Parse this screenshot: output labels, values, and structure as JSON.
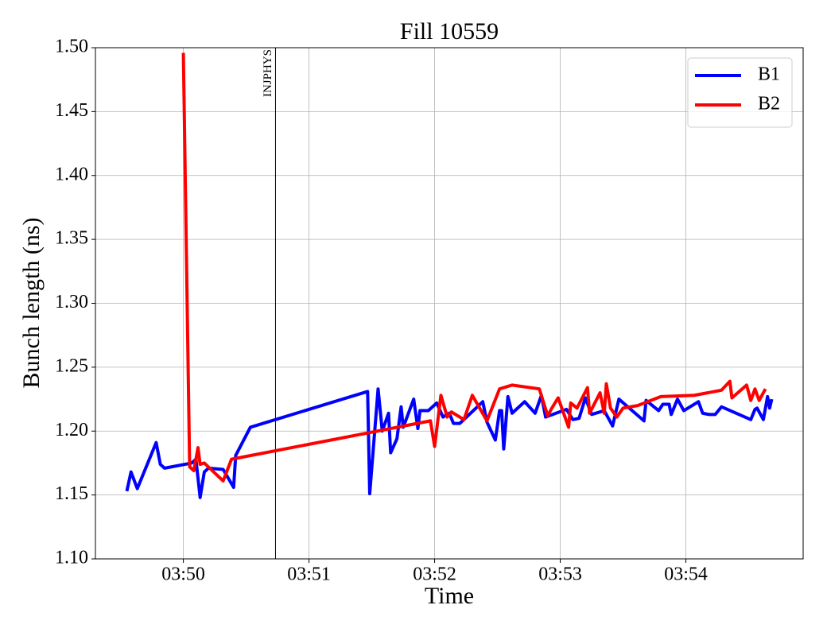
{
  "chart_data": {
    "type": "line",
    "title": "Fill 10559",
    "x_label": "Time",
    "y_label": "Bunch length (ns)",
    "xlim": [
      "03:49:18",
      "03:54:56"
    ],
    "xticks": [
      {
        "value": "03:50:00",
        "label": "03:50"
      },
      {
        "value": "03:51:00",
        "label": "03:51"
      },
      {
        "value": "03:52:00",
        "label": "03:52"
      },
      {
        "value": "03:53:00",
        "label": "03:53"
      },
      {
        "value": "03:54:00",
        "label": "03:54"
      }
    ],
    "ylim": [
      1.1,
      1.5
    ],
    "yticks": [
      {
        "value": 1.1,
        "label": "1.10"
      },
      1.15,
      {
        "value": 1.2,
        "label": "1.20"
      },
      1.25,
      {
        "value": 1.3,
        "label": "1.30"
      },
      1.35,
      {
        "value": 1.4,
        "label": "1.40"
      },
      1.45,
      {
        "value": 1.5,
        "label": "1.50"
      }
    ],
    "grid": true,
    "legend_position": "upper right",
    "annotations": [
      {
        "x": "03:50:44",
        "text": "INJPHYS"
      }
    ],
    "series": [
      {
        "name": "B1",
        "color": "#0000ff",
        "x": [
          "03:49:33",
          "03:49:35",
          "03:49:38",
          "03:49:47",
          "03:49:49",
          "03:49:51",
          "03:50:04",
          "03:50:06",
          "03:50:08",
          "03:50:10",
          "03:50:12",
          "03:50:19",
          "03:50:24",
          "03:50:25",
          "03:50:32",
          "03:51:28",
          "03:51:29",
          "03:51:33",
          "03:51:35",
          "03:51:38",
          "03:51:39",
          "03:51:42",
          "03:51:44",
          "03:51:45",
          "03:51:50",
          "03:51:52",
          "03:51:53",
          "03:51:57",
          "03:52:01",
          "03:52:04",
          "03:52:07",
          "03:52:09",
          "03:52:12",
          "03:52:23",
          "03:52:25",
          "03:52:29",
          "03:52:31",
          "03:52:32",
          "03:52:33",
          "03:52:35",
          "03:52:37",
          "03:52:43",
          "03:52:48",
          "03:52:51",
          "03:52:53",
          "03:53:03",
          "03:53:06",
          "03:53:09",
          "03:53:12",
          "03:53:15",
          "03:53:21",
          "03:53:25",
          "03:53:28",
          "03:53:40",
          "03:53:41",
          "03:53:47",
          "03:53:49",
          "03:53:52",
          "03:53:53",
          "03:53:56",
          "03:53:59",
          "03:54:06",
          "03:54:08",
          "03:54:11",
          "03:54:14",
          "03:54:17",
          "03:54:31",
          "03:54:33",
          "03:54:34",
          "03:54:37",
          "03:54:39",
          "03:54:40",
          "03:54:41"
        ],
        "values": [
          1.153,
          1.168,
          1.155,
          1.191,
          1.174,
          1.171,
          1.175,
          1.178,
          1.148,
          1.168,
          1.171,
          1.17,
          1.156,
          1.181,
          1.203,
          1.231,
          1.151,
          1.233,
          1.2,
          1.214,
          1.183,
          1.194,
          1.219,
          1.203,
          1.225,
          1.202,
          1.216,
          1.216,
          1.222,
          1.211,
          1.214,
          1.206,
          1.206,
          1.223,
          1.207,
          1.193,
          1.216,
          1.216,
          1.186,
          1.227,
          1.214,
          1.223,
          1.214,
          1.228,
          1.211,
          1.217,
          1.209,
          1.21,
          1.226,
          1.213,
          1.216,
          1.204,
          1.225,
          1.208,
          1.224,
          1.216,
          1.221,
          1.221,
          1.213,
          1.225,
          1.216,
          1.223,
          1.214,
          1.213,
          1.213,
          1.219,
          1.209,
          1.217,
          1.218,
          1.209,
          1.227,
          1.218,
          1.225
        ]
      },
      {
        "name": "B2",
        "color": "#ff0000",
        "x": [
          "03:50:00",
          "03:50:03",
          "03:50:05",
          "03:50:07",
          "03:50:08",
          "03:50:10",
          "03:50:19",
          "03:50:23",
          "03:51:58",
          "03:52:00",
          "03:52:03",
          "03:52:06",
          "03:52:08",
          "03:52:14",
          "03:52:18",
          "03:52:25",
          "03:52:31",
          "03:52:37",
          "03:52:50",
          "03:52:54",
          "03:52:56",
          "03:52:59",
          "03:53:04",
          "03:53:05",
          "03:53:08",
          "03:53:13",
          "03:53:14",
          "03:53:19",
          "03:53:21",
          "03:53:22",
          "03:53:24",
          "03:53:27",
          "03:53:30",
          "03:53:37",
          "03:53:48",
          "03:54:04",
          "03:54:17",
          "03:54:21",
          "03:54:22",
          "03:54:29",
          "03:54:31",
          "03:54:33",
          "03:54:35",
          "03:54:38"
        ],
        "values": [
          1.496,
          1.172,
          1.169,
          1.187,
          1.174,
          1.175,
          1.161,
          1.178,
          1.208,
          1.188,
          1.228,
          1.211,
          1.215,
          1.209,
          1.228,
          1.208,
          1.233,
          1.236,
          1.233,
          1.212,
          1.218,
          1.226,
          1.203,
          1.222,
          1.218,
          1.234,
          1.214,
          1.23,
          1.214,
          1.237,
          1.218,
          1.211,
          1.218,
          1.22,
          1.227,
          1.228,
          1.232,
          1.239,
          1.226,
          1.236,
          1.224,
          1.233,
          1.224,
          1.233
        ]
      }
    ]
  }
}
